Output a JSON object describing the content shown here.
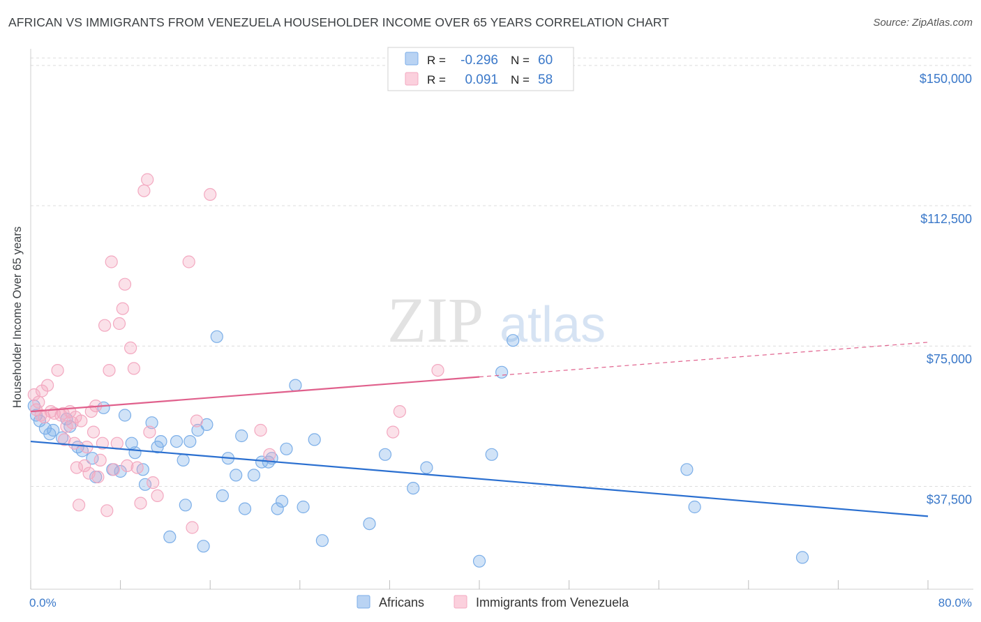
{
  "title": "AFRICAN VS IMMIGRANTS FROM VENEZUELA HOUSEHOLDER INCOME OVER 65 YEARS CORRELATION CHART",
  "source": "Source: ZipAtlas.com",
  "watermark": {
    "zip": "ZIP",
    "atlas": "atlas"
  },
  "colors": {
    "blue": "#7baee8",
    "blue_line": "#2a6fd0",
    "pink": "#f3a8c0",
    "pink_line": "#e0608c",
    "axis_text": "#3a78c9",
    "grid": "#d8d8d8"
  },
  "legend_stats": [
    {
      "r_label": "R =",
      "r_value": "-0.296",
      "n_label": "N =",
      "n_value": "60",
      "color": "#7baee8"
    },
    {
      "r_label": "R =",
      "r_value": "0.091",
      "n_label": "N =",
      "n_value": "58",
      "color": "#f3a8c0"
    }
  ],
  "chart_data": {
    "type": "scatter",
    "title": "AFRICAN VS IMMIGRANTS FROM VENEZUELA HOUSEHOLDER INCOME OVER 65 YEARS CORRELATION CHART",
    "xlabel": "",
    "ylabel": "Householder Income Over 65 years",
    "xlim": [
      0,
      80
    ],
    "ylim": [
      10000,
      155000
    ],
    "x_tick_labels": [
      "0.0%",
      "80.0%"
    ],
    "y_ticks": [
      37500,
      75000,
      112500,
      150000
    ],
    "y_tick_labels": [
      "$37,500",
      "$75,000",
      "$112,500",
      "$150,000"
    ],
    "legend": [
      "Africans",
      "Immigrants from Venezuela"
    ],
    "series": [
      {
        "name": "Africans",
        "color": "#7baee8",
        "trend": {
          "x": [
            0,
            80
          ],
          "y": [
            49500,
            29500
          ],
          "dashed_from": null
        },
        "points": [
          [
            0.3,
            59000
          ],
          [
            0.5,
            56500
          ],
          [
            0.8,
            55000
          ],
          [
            1.3,
            53000
          ],
          [
            1.7,
            51500
          ],
          [
            2.0,
            52500
          ],
          [
            2.8,
            50500
          ],
          [
            3.2,
            55500
          ],
          [
            3.5,
            53500
          ],
          [
            4.2,
            48000
          ],
          [
            4.6,
            47000
          ],
          [
            5.5,
            45000
          ],
          [
            5.8,
            40000
          ],
          [
            6.5,
            58500
          ],
          [
            7.3,
            42000
          ],
          [
            8.0,
            41500
          ],
          [
            8.4,
            56500
          ],
          [
            9.0,
            49000
          ],
          [
            9.3,
            46500
          ],
          [
            10.0,
            42000
          ],
          [
            10.2,
            38000
          ],
          [
            10.8,
            54500
          ],
          [
            11.3,
            48000
          ],
          [
            11.6,
            49500
          ],
          [
            12.4,
            24000
          ],
          [
            13.0,
            49500
          ],
          [
            13.6,
            44500
          ],
          [
            13.8,
            32500
          ],
          [
            14.2,
            49500
          ],
          [
            14.9,
            52500
          ],
          [
            15.4,
            21500
          ],
          [
            15.7,
            54000
          ],
          [
            16.6,
            77500
          ],
          [
            17.1,
            35000
          ],
          [
            17.6,
            45000
          ],
          [
            18.3,
            40500
          ],
          [
            18.8,
            51000
          ],
          [
            19.1,
            31500
          ],
          [
            19.9,
            40500
          ],
          [
            20.6,
            44000
          ],
          [
            21.2,
            44000
          ],
          [
            21.5,
            45000
          ],
          [
            22.0,
            31500
          ],
          [
            22.4,
            33500
          ],
          [
            22.8,
            47500
          ],
          [
            23.6,
            64500
          ],
          [
            24.3,
            32000
          ],
          [
            25.3,
            50000
          ],
          [
            26.0,
            23000
          ],
          [
            30.2,
            27500
          ],
          [
            31.6,
            46000
          ],
          [
            34.1,
            37000
          ],
          [
            35.3,
            42500
          ],
          [
            40.0,
            17500
          ],
          [
            41.1,
            46000
          ],
          [
            42.0,
            68000
          ],
          [
            43.0,
            76500
          ],
          [
            58.5,
            42000
          ],
          [
            59.2,
            32000
          ],
          [
            68.8,
            18500
          ]
        ]
      },
      {
        "name": "Immigrants from Venezuela",
        "color": "#f3a8c0",
        "trend": {
          "x": [
            0,
            80
          ],
          "y": [
            57500,
            76000
          ],
          "dashed_from": 40.0
        },
        "points": [
          [
            0.3,
            62000
          ],
          [
            0.5,
            58000
          ],
          [
            0.7,
            60000
          ],
          [
            1.0,
            63000
          ],
          [
            1.2,
            56000
          ],
          [
            1.5,
            64500
          ],
          [
            1.8,
            57500
          ],
          [
            2.1,
            57000
          ],
          [
            2.4,
            68500
          ],
          [
            2.7,
            56500
          ],
          [
            3.0,
            50000
          ],
          [
            3.2,
            53500
          ],
          [
            3.5,
            57500
          ],
          [
            3.7,
            54500
          ],
          [
            3.9,
            49000
          ],
          [
            4.1,
            42500
          ],
          [
            4.3,
            32500
          ],
          [
            4.5,
            55000
          ],
          [
            4.8,
            43000
          ],
          [
            5.0,
            48000
          ],
          [
            5.2,
            41000
          ],
          [
            5.4,
            57500
          ],
          [
            5.6,
            52000
          ],
          [
            5.8,
            59000
          ],
          [
            6.0,
            40000
          ],
          [
            6.2,
            44500
          ],
          [
            6.4,
            49000
          ],
          [
            6.6,
            80500
          ],
          [
            6.8,
            31000
          ],
          [
            7.0,
            68500
          ],
          [
            7.2,
            97500
          ],
          [
            7.4,
            42000
          ],
          [
            7.7,
            49000
          ],
          [
            7.9,
            81000
          ],
          [
            8.2,
            85000
          ],
          [
            8.4,
            91500
          ],
          [
            8.6,
            43000
          ],
          [
            8.9,
            74500
          ],
          [
            9.2,
            69000
          ],
          [
            9.5,
            42500
          ],
          [
            9.8,
            33000
          ],
          [
            10.1,
            116500
          ],
          [
            10.4,
            119500
          ],
          [
            10.6,
            52000
          ],
          [
            10.9,
            38500
          ],
          [
            11.3,
            35000
          ],
          [
            14.1,
            97500
          ],
          [
            14.4,
            26500
          ],
          [
            14.8,
            55000
          ],
          [
            16.0,
            115500
          ],
          [
            20.5,
            52500
          ],
          [
            21.3,
            46000
          ],
          [
            32.3,
            52000
          ],
          [
            32.9,
            57500
          ],
          [
            36.3,
            68500
          ],
          [
            0.9,
            56500
          ],
          [
            2.9,
            57000
          ],
          [
            4.0,
            56000
          ]
        ]
      }
    ]
  }
}
